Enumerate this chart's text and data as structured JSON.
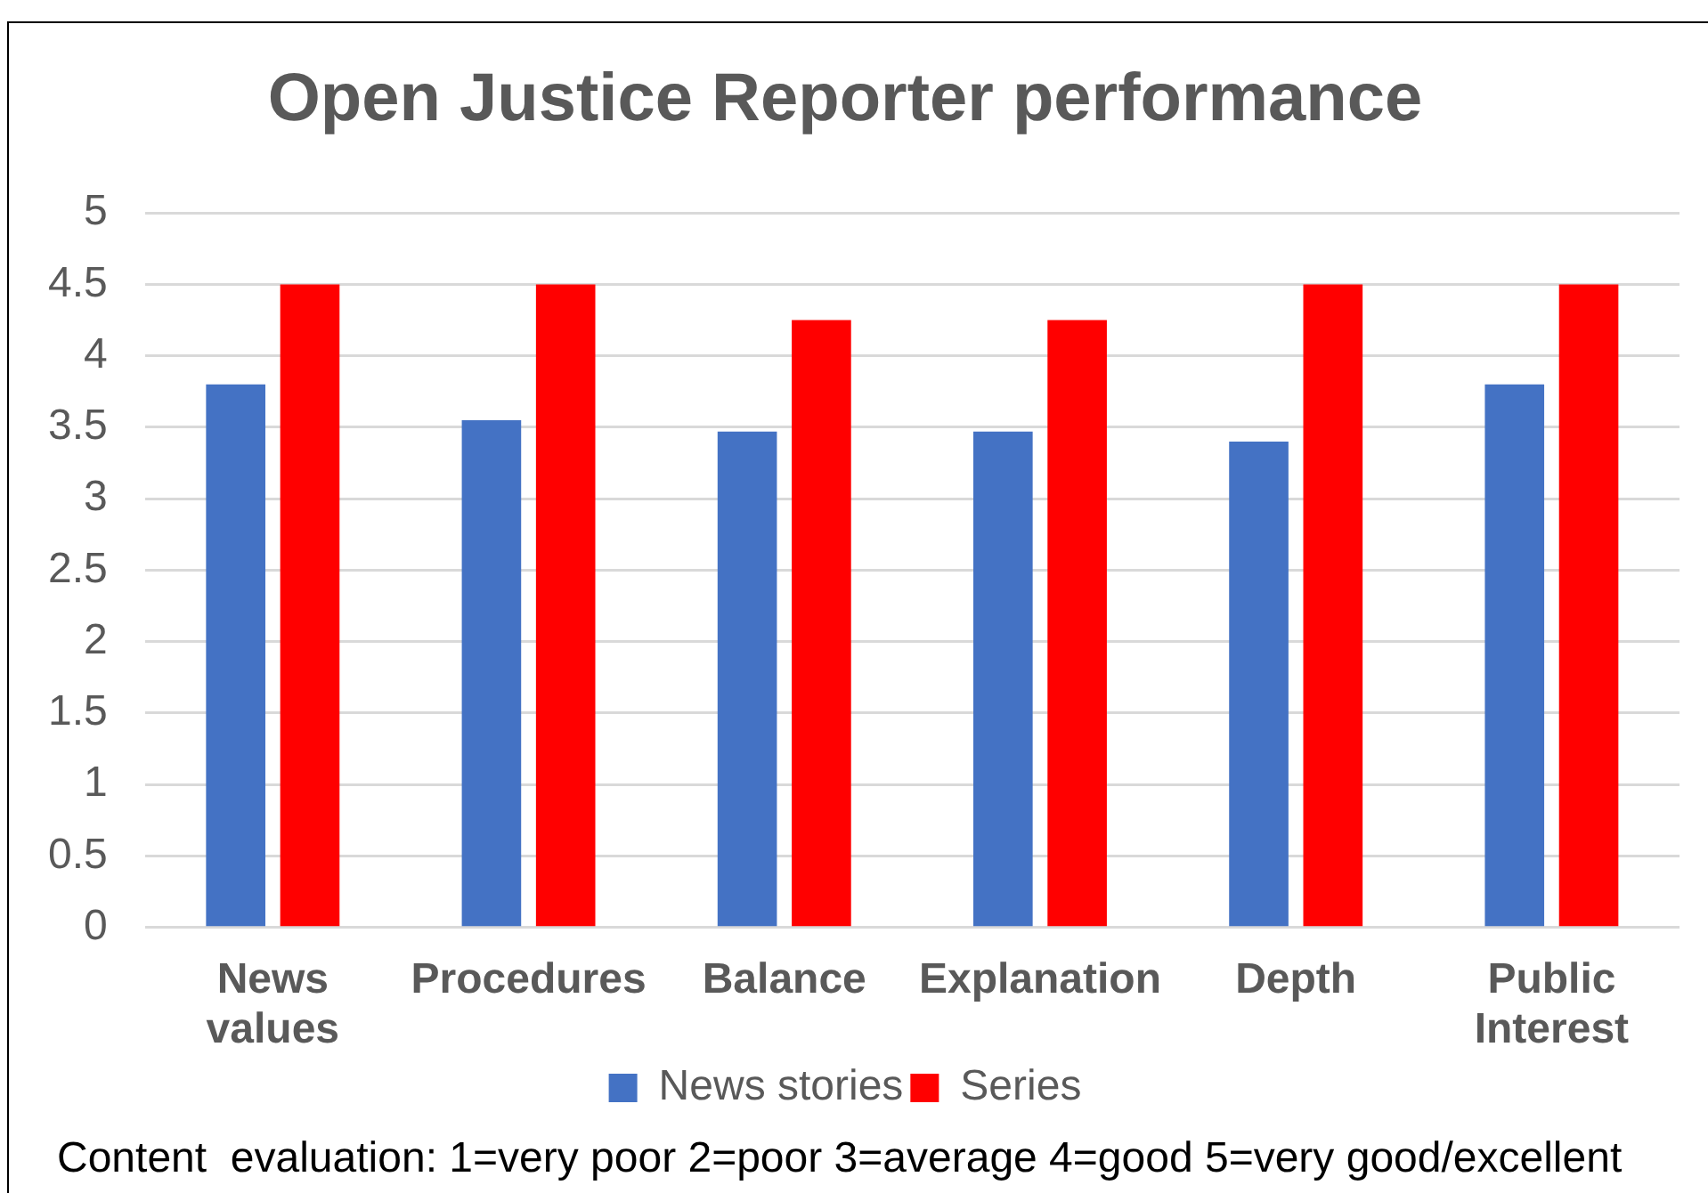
{
  "chart_data": {
    "type": "bar",
    "title": "Open Justice Reporter performance",
    "categories": [
      "News values",
      "Procedures",
      "Balance",
      "Explanation",
      "Depth",
      "Public Interest"
    ],
    "series": [
      {
        "name": "News stories",
        "color": "#4472c4",
        "values": [
          3.8,
          3.55,
          3.47,
          3.47,
          3.4,
          3.8
        ]
      },
      {
        "name": "Series",
        "color": "#ff0000",
        "values": [
          4.5,
          4.5,
          4.25,
          4.25,
          4.5,
          4.5
        ]
      }
    ],
    "ylim": [
      0,
      5
    ],
    "yticks": [
      0,
      0.5,
      1,
      1.5,
      2,
      2.5,
      3,
      3.5,
      4,
      4.5,
      5
    ],
    "grid": "y",
    "legend": "bottom",
    "annotations": [
      "Content  evaluation: 1=very poor 2=poor 3=average 4=good 5=very good/excellent"
    ]
  }
}
